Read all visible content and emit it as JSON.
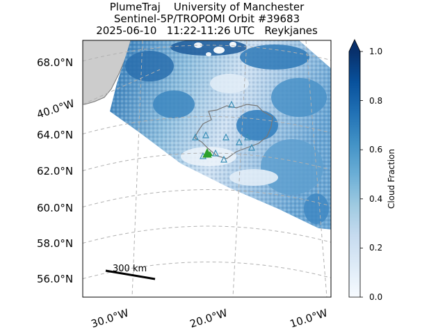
{
  "title": {
    "line1": "PlumeTraj    University of Manchester",
    "line2": "Sentinel-5P/TROPOMI Orbit #39683",
    "line3": "2025-06-10   11:22-11:26 UTC   Reykjanes"
  },
  "map": {
    "projection": "conic",
    "lat_labels": [
      "68.0°N",
      "64.0°N",
      "62.0°N",
      "60.0°N",
      "58.0°N",
      "56.0°N"
    ],
    "lon_labels": [
      "30.0°W",
      "20.0°W",
      "10.0°W"
    ],
    "side_lon_label": "40.0°W",
    "gridlines": "dashed",
    "land_color": "#cccccc",
    "coast_color": "#777777",
    "volcano_marker_color": "#3a8fb7",
    "source_marker_color": "#2ca02c",
    "scale_bar": {
      "label": "300 km"
    }
  },
  "colorbar": {
    "label": "Cloud Fraction",
    "ticks": [
      "0.0",
      "0.2",
      "0.4",
      "0.6",
      "0.8",
      "1.0"
    ],
    "min": 0.0,
    "max": 1.0,
    "extend": "max",
    "colormap": "Blues",
    "color_low": "#f7fbff",
    "color_high": "#08306b"
  }
}
